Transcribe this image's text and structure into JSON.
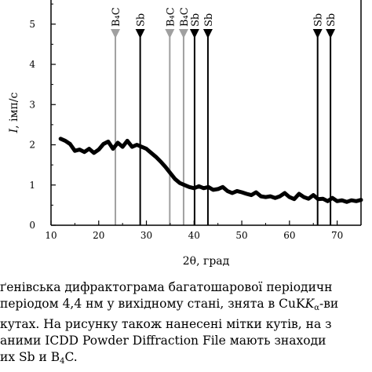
{
  "chart_data": {
    "type": "line",
    "xlabel": "2θ, град",
    "ylabel": "I, імп/с",
    "xlim": [
      10,
      75
    ],
    "ylim": [
      0,
      5.6
    ],
    "xticks": [
      10,
      20,
      30,
      40,
      50,
      60,
      70
    ],
    "yticks": [
      0,
      1,
      2,
      3,
      4,
      5
    ],
    "grid": false,
    "series": [
      {
        "x": [
          12,
          13,
          14,
          15,
          16,
          17,
          18,
          19,
          20,
          21,
          22,
          23,
          24,
          25,
          26,
          27,
          28,
          29,
          30,
          31,
          32,
          33,
          34,
          35,
          36,
          37,
          38,
          39,
          40,
          41,
          42,
          43,
          44,
          45,
          46,
          47,
          48,
          49,
          50,
          51,
          52,
          53,
          54,
          55,
          56,
          57,
          58,
          59,
          60,
          61,
          62,
          63,
          64,
          65,
          66,
          67,
          68,
          69,
          70,
          71,
          72,
          73,
          74,
          75
        ],
        "y": [
          2.15,
          2.1,
          2.02,
          1.85,
          1.88,
          1.82,
          1.9,
          1.8,
          1.88,
          2.02,
          2.08,
          1.9,
          2.05,
          1.95,
          2.1,
          1.95,
          2.0,
          1.95,
          1.9,
          1.8,
          1.7,
          1.58,
          1.45,
          1.3,
          1.15,
          1.05,
          1.0,
          0.95,
          0.92,
          0.97,
          0.92,
          0.95,
          0.88,
          0.9,
          0.95,
          0.85,
          0.8,
          0.85,
          0.82,
          0.78,
          0.75,
          0.82,
          0.72,
          0.7,
          0.72,
          0.68,
          0.72,
          0.8,
          0.7,
          0.65,
          0.78,
          0.7,
          0.66,
          0.75,
          0.65,
          0.66,
          0.6,
          0.68,
          0.6,
          0.62,
          0.58,
          0.62,
          0.6,
          0.63
        ]
      }
    ],
    "markers": [
      {
        "label": "B₄C",
        "x": 23.5,
        "color": "#a0a0a0"
      },
      {
        "label": "Sb",
        "x": 28.7,
        "color": "#000000"
      },
      {
        "label": "B₄C",
        "x": 34.9,
        "color": "#a0a0a0"
      },
      {
        "label": "B₄C",
        "x": 37.8,
        "color": "#a0a0a0"
      },
      {
        "label": "Sb",
        "x": 40.1,
        "color": "#000000"
      },
      {
        "label": "Sb",
        "x": 42.9,
        "color": "#000000"
      },
      {
        "label": "Sb",
        "x": 65.9,
        "color": "#000000"
      },
      {
        "label": "Sb",
        "x": 68.6,
        "color": "#000000"
      }
    ]
  },
  "caption": {
    "lines": [
      "ґенівська дифрактограма багатошарової періодичн",
      " періодом 4,4 нм у вихідному стані, знята в CuK",
      " кутах. На рисунку також нанесені мітки кутів, на з",
      "аними ICDD Powder Diffraction File мають знаходи",
      "их Sb и B"
    ],
    "line2_italic": "K",
    "line2_sub": "α",
    "line2_tail": "-ви",
    "line5_sub": "4",
    "line5_tail": "C."
  }
}
